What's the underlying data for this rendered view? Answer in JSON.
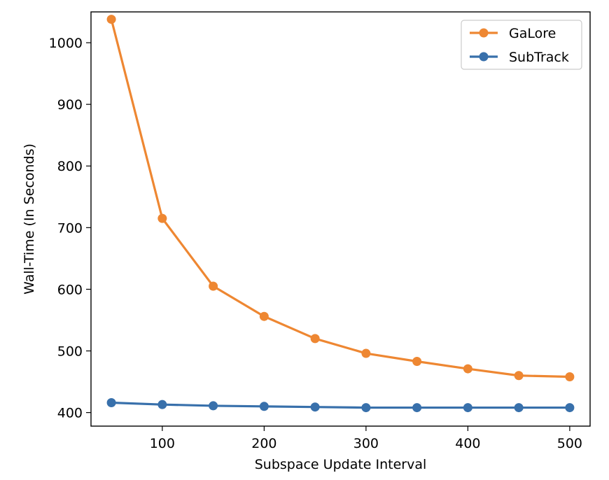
{
  "chart_data": {
    "type": "line",
    "title": "",
    "xlabel": "Subspace Update Interval",
    "ylabel": "Wall-Time (In Seconds)",
    "x": [
      50,
      100,
      150,
      200,
      250,
      300,
      350,
      400,
      450,
      500
    ],
    "xlim": [
      30,
      520
    ],
    "ylim": [
      378,
      1050
    ],
    "xticks": [
      100,
      200,
      300,
      400,
      500
    ],
    "yticks": [
      400,
      500,
      600,
      700,
      800,
      900,
      1000
    ],
    "grid": false,
    "legend_position": "top-right",
    "series": [
      {
        "name": "GaLore",
        "color": "#ee8732",
        "values": [
          1038,
          715,
          605,
          556,
          520,
          496,
          483,
          471,
          460,
          458
        ]
      },
      {
        "name": "SubTrack",
        "color": "#3870ab",
        "values": [
          416,
          413,
          411,
          410,
          409,
          408,
          408,
          408,
          408,
          408
        ]
      }
    ]
  }
}
